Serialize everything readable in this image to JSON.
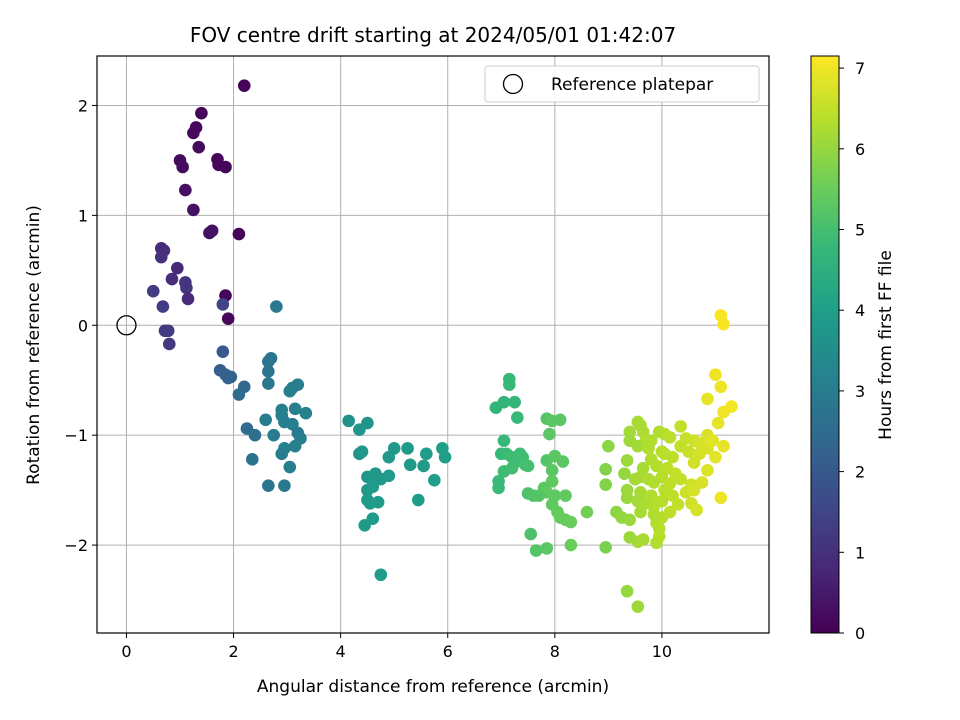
{
  "chart_data": {
    "type": "scatter",
    "title": "FOV centre drift starting at 2024/05/01 01:42:07",
    "xlabel": "Angular distance from reference (arcmin)",
    "ylabel": "Rotation from reference (arcmin)",
    "xlim": [
      -0.55,
      12.0
    ],
    "ylim": [
      -2.8,
      2.45
    ],
    "xticks": [
      0,
      2,
      4,
      6,
      8,
      10
    ],
    "yticks": [
      -2,
      -1,
      0,
      1,
      2
    ],
    "grid": true,
    "legend": {
      "position": "top-right",
      "entries": [
        "Reference platepar"
      ]
    },
    "reference_point": {
      "x": 0,
      "y": 0,
      "label": "Reference platepar",
      "marker": "hollow-circle"
    },
    "colorbar": {
      "label": "Hours from first FF file",
      "range": [
        0,
        7.15
      ],
      "ticks": [
        0,
        1,
        2,
        3,
        4,
        5,
        6,
        7
      ],
      "colormap": "viridis"
    },
    "colormap_stops": [
      "#440154",
      "#482878",
      "#3e4989",
      "#31688e",
      "#26828e",
      "#1f9e89",
      "#35b779",
      "#6ece58",
      "#b5de2b",
      "#fde725"
    ],
    "points": [
      {
        "x": 2.2,
        "y": 2.18,
        "c": 0.05
      },
      {
        "x": 1.4,
        "y": 1.93,
        "c": 0.1
      },
      {
        "x": 1.3,
        "y": 1.8,
        "c": 0.15
      },
      {
        "x": 1.25,
        "y": 1.75,
        "c": 0.15
      },
      {
        "x": 1.35,
        "y": 1.62,
        "c": 0.2
      },
      {
        "x": 1.0,
        "y": 1.5,
        "c": 0.2
      },
      {
        "x": 1.05,
        "y": 1.44,
        "c": 0.25
      },
      {
        "x": 1.7,
        "y": 1.51,
        "c": 0.1
      },
      {
        "x": 1.72,
        "y": 1.46,
        "c": 0.15
      },
      {
        "x": 1.85,
        "y": 1.44,
        "c": 0.1
      },
      {
        "x": 1.1,
        "y": 1.23,
        "c": 0.3
      },
      {
        "x": 1.25,
        "y": 1.05,
        "c": 0.35
      },
      {
        "x": 1.55,
        "y": 0.84,
        "c": 0.3
      },
      {
        "x": 1.6,
        "y": 0.86,
        "c": 0.35
      },
      {
        "x": 2.1,
        "y": 0.83,
        "c": 0.1
      },
      {
        "x": 0.65,
        "y": 0.7,
        "c": 0.9
      },
      {
        "x": 0.7,
        "y": 0.68,
        "c": 0.95
      },
      {
        "x": 0.65,
        "y": 0.62,
        "c": 1.0
      },
      {
        "x": 0.95,
        "y": 0.52,
        "c": 0.8
      },
      {
        "x": 0.85,
        "y": 0.42,
        "c": 0.9
      },
      {
        "x": 1.1,
        "y": 0.39,
        "c": 1.05
      },
      {
        "x": 1.12,
        "y": 0.34,
        "c": 1.1
      },
      {
        "x": 0.5,
        "y": 0.31,
        "c": 1.3
      },
      {
        "x": 1.15,
        "y": 0.24,
        "c": 0.85
      },
      {
        "x": 1.85,
        "y": 0.27,
        "c": 0.1
      },
      {
        "x": 1.8,
        "y": 0.19,
        "c": 1.5
      },
      {
        "x": 0.68,
        "y": 0.17,
        "c": 1.3
      },
      {
        "x": 1.9,
        "y": 0.06,
        "c": 0.15
      },
      {
        "x": 2.8,
        "y": 0.17,
        "c": 2.9
      },
      {
        "x": 0.72,
        "y": -0.05,
        "c": 1.2
      },
      {
        "x": 0.78,
        "y": -0.05,
        "c": 1.25
      },
      {
        "x": 0.8,
        "y": -0.17,
        "c": 1.2
      },
      {
        "x": 1.8,
        "y": -0.24,
        "c": 2.0
      },
      {
        "x": 2.65,
        "y": -0.33,
        "c": 2.7
      },
      {
        "x": 2.7,
        "y": -0.3,
        "c": 2.8
      },
      {
        "x": 1.75,
        "y": -0.41,
        "c": 2.1
      },
      {
        "x": 1.85,
        "y": -0.45,
        "c": 2.2
      },
      {
        "x": 1.9,
        "y": -0.48,
        "c": 2.2
      },
      {
        "x": 1.95,
        "y": -0.47,
        "c": 2.25
      },
      {
        "x": 2.65,
        "y": -0.42,
        "c": 2.8
      },
      {
        "x": 2.65,
        "y": -0.53,
        "c": 2.85
      },
      {
        "x": 2.2,
        "y": -0.56,
        "c": 2.4
      },
      {
        "x": 2.1,
        "y": -0.63,
        "c": 2.5
      },
      {
        "x": 3.1,
        "y": -0.57,
        "c": 3.0
      },
      {
        "x": 3.2,
        "y": -0.54,
        "c": 3.05
      },
      {
        "x": 3.05,
        "y": -0.6,
        "c": 3.1
      },
      {
        "x": 3.15,
        "y": -0.76,
        "c": 3.1
      },
      {
        "x": 2.9,
        "y": -0.77,
        "c": 3.1
      },
      {
        "x": 2.9,
        "y": -0.82,
        "c": 3.1
      },
      {
        "x": 3.35,
        "y": -0.8,
        "c": 3.2
      },
      {
        "x": 2.6,
        "y": -0.86,
        "c": 3.0
      },
      {
        "x": 2.95,
        "y": -0.88,
        "c": 3.05
      },
      {
        "x": 3.1,
        "y": -0.9,
        "c": 3.1
      },
      {
        "x": 2.25,
        "y": -0.94,
        "c": 2.5
      },
      {
        "x": 2.4,
        "y": -1.0,
        "c": 2.6
      },
      {
        "x": 2.75,
        "y": -1.0,
        "c": 3.0
      },
      {
        "x": 3.2,
        "y": -0.98,
        "c": 3.0
      },
      {
        "x": 3.25,
        "y": -1.03,
        "c": 3.1
      },
      {
        "x": 3.15,
        "y": -1.1,
        "c": 3.1
      },
      {
        "x": 2.95,
        "y": -1.12,
        "c": 3.15
      },
      {
        "x": 2.9,
        "y": -1.17,
        "c": 3.1
      },
      {
        "x": 2.35,
        "y": -1.22,
        "c": 2.7
      },
      {
        "x": 3.05,
        "y": -1.29,
        "c": 3.1
      },
      {
        "x": 2.65,
        "y": -1.46,
        "c": 2.8
      },
      {
        "x": 2.95,
        "y": -1.46,
        "c": 2.9
      },
      {
        "x": 4.15,
        "y": -0.87,
        "c": 3.6
      },
      {
        "x": 4.35,
        "y": -0.95,
        "c": 3.7
      },
      {
        "x": 4.5,
        "y": -0.89,
        "c": 3.7
      },
      {
        "x": 4.35,
        "y": -1.17,
        "c": 3.7
      },
      {
        "x": 4.4,
        "y": -1.15,
        "c": 3.75
      },
      {
        "x": 4.9,
        "y": -1.2,
        "c": 3.8
      },
      {
        "x": 5.0,
        "y": -1.12,
        "c": 3.8
      },
      {
        "x": 5.25,
        "y": -1.12,
        "c": 3.85
      },
      {
        "x": 5.3,
        "y": -1.27,
        "c": 3.9
      },
      {
        "x": 5.55,
        "y": -1.28,
        "c": 3.9
      },
      {
        "x": 5.6,
        "y": -1.17,
        "c": 3.95
      },
      {
        "x": 5.9,
        "y": -1.12,
        "c": 4.0
      },
      {
        "x": 5.95,
        "y": -1.2,
        "c": 4.0
      },
      {
        "x": 5.75,
        "y": -1.41,
        "c": 4.0
      },
      {
        "x": 4.5,
        "y": -1.38,
        "c": 3.75
      },
      {
        "x": 4.55,
        "y": -1.39,
        "c": 3.8
      },
      {
        "x": 4.65,
        "y": -1.35,
        "c": 3.8
      },
      {
        "x": 4.75,
        "y": -1.4,
        "c": 3.8
      },
      {
        "x": 4.9,
        "y": -1.37,
        "c": 3.85
      },
      {
        "x": 4.5,
        "y": -1.5,
        "c": 3.8
      },
      {
        "x": 4.6,
        "y": -1.47,
        "c": 3.85
      },
      {
        "x": 4.5,
        "y": -1.59,
        "c": 3.85
      },
      {
        "x": 4.55,
        "y": -1.62,
        "c": 3.9
      },
      {
        "x": 4.7,
        "y": -1.61,
        "c": 3.9
      },
      {
        "x": 5.45,
        "y": -1.59,
        "c": 3.95
      },
      {
        "x": 4.6,
        "y": -1.76,
        "c": 3.9
      },
      {
        "x": 4.45,
        "y": -1.82,
        "c": 3.9
      },
      {
        "x": 4.75,
        "y": -2.27,
        "c": 3.95
      },
      {
        "x": 7.15,
        "y": -0.49,
        "c": 4.8
      },
      {
        "x": 7.15,
        "y": -0.54,
        "c": 4.8
      },
      {
        "x": 6.9,
        "y": -0.75,
        "c": 4.7
      },
      {
        "x": 7.05,
        "y": -0.7,
        "c": 4.7
      },
      {
        "x": 7.25,
        "y": -0.7,
        "c": 4.75
      },
      {
        "x": 7.3,
        "y": -0.84,
        "c": 4.8
      },
      {
        "x": 7.85,
        "y": -0.85,
        "c": 5.2
      },
      {
        "x": 7.95,
        "y": -0.87,
        "c": 5.3
      },
      {
        "x": 8.1,
        "y": -0.86,
        "c": 5.3
      },
      {
        "x": 7.9,
        "y": -0.99,
        "c": 5.3
      },
      {
        "x": 7.05,
        "y": -1.05,
        "c": 4.8
      },
      {
        "x": 7.0,
        "y": -1.17,
        "c": 4.8
      },
      {
        "x": 7.1,
        "y": -1.17,
        "c": 4.85
      },
      {
        "x": 7.2,
        "y": -1.2,
        "c": 4.9
      },
      {
        "x": 7.35,
        "y": -1.17,
        "c": 4.9
      },
      {
        "x": 7.4,
        "y": -1.2,
        "c": 4.95
      },
      {
        "x": 7.25,
        "y": -1.25,
        "c": 4.9
      },
      {
        "x": 7.45,
        "y": -1.27,
        "c": 5.0
      },
      {
        "x": 7.5,
        "y": -1.28,
        "c": 5.0
      },
      {
        "x": 7.05,
        "y": -1.33,
        "c": 4.9
      },
      {
        "x": 7.2,
        "y": -1.3,
        "c": 4.95
      },
      {
        "x": 7.85,
        "y": -1.23,
        "c": 5.2
      },
      {
        "x": 8.0,
        "y": -1.19,
        "c": 5.3
      },
      {
        "x": 8.15,
        "y": -1.24,
        "c": 5.3
      },
      {
        "x": 7.95,
        "y": -1.32,
        "c": 5.3
      },
      {
        "x": 6.95,
        "y": -1.42,
        "c": 4.85
      },
      {
        "x": 6.95,
        "y": -1.48,
        "c": 4.85
      },
      {
        "x": 7.95,
        "y": -1.42,
        "c": 5.35
      },
      {
        "x": 7.8,
        "y": -1.48,
        "c": 5.3
      },
      {
        "x": 7.85,
        "y": -1.52,
        "c": 5.35
      },
      {
        "x": 7.5,
        "y": -1.53,
        "c": 5.1
      },
      {
        "x": 7.6,
        "y": -1.55,
        "c": 5.15
      },
      {
        "x": 7.7,
        "y": -1.55,
        "c": 5.2
      },
      {
        "x": 8.0,
        "y": -1.55,
        "c": 5.35
      },
      {
        "x": 8.2,
        "y": -1.55,
        "c": 5.4
      },
      {
        "x": 7.95,
        "y": -1.63,
        "c": 5.35
      },
      {
        "x": 8.05,
        "y": -1.7,
        "c": 5.4
      },
      {
        "x": 8.1,
        "y": -1.75,
        "c": 5.45
      },
      {
        "x": 8.2,
        "y": -1.77,
        "c": 5.45
      },
      {
        "x": 8.3,
        "y": -1.79,
        "c": 5.5
      },
      {
        "x": 8.6,
        "y": -1.7,
        "c": 5.6
      },
      {
        "x": 7.55,
        "y": -1.9,
        "c": 5.1
      },
      {
        "x": 8.3,
        "y": -2.0,
        "c": 5.5
      },
      {
        "x": 7.65,
        "y": -2.05,
        "c": 5.2
      },
      {
        "x": 7.85,
        "y": -2.03,
        "c": 5.3
      },
      {
        "x": 8.95,
        "y": -2.02,
        "c": 5.7
      },
      {
        "x": 9.55,
        "y": -0.88,
        "c": 6.2
      },
      {
        "x": 9.6,
        "y": -0.91,
        "c": 6.2
      },
      {
        "x": 9.4,
        "y": -0.97,
        "c": 6.15
      },
      {
        "x": 9.65,
        "y": -0.97,
        "c": 6.25
      },
      {
        "x": 9.8,
        "y": -1.05,
        "c": 6.3
      },
      {
        "x": 9.7,
        "y": -1.05,
        "c": 6.3
      },
      {
        "x": 9.95,
        "y": -0.97,
        "c": 6.3
      },
      {
        "x": 10.05,
        "y": -0.99,
        "c": 6.35
      },
      {
        "x": 10.15,
        "y": -1.02,
        "c": 6.4
      },
      {
        "x": 10.35,
        "y": -0.92,
        "c": 6.5
      },
      {
        "x": 10.45,
        "y": -1.03,
        "c": 6.55
      },
      {
        "x": 10.6,
        "y": -1.05,
        "c": 6.6
      },
      {
        "x": 10.7,
        "y": -1.07,
        "c": 6.7
      },
      {
        "x": 10.85,
        "y": -1.0,
        "c": 6.75
      },
      {
        "x": 11.05,
        "y": -0.89,
        "c": 6.9
      },
      {
        "x": 11.15,
        "y": -0.79,
        "c": 7.0
      },
      {
        "x": 11.3,
        "y": -0.74,
        "c": 7.05
      },
      {
        "x": 10.85,
        "y": -0.67,
        "c": 6.9
      },
      {
        "x": 11.0,
        "y": -0.45,
        "c": 7.0
      },
      {
        "x": 11.1,
        "y": -0.56,
        "c": 7.0
      },
      {
        "x": 11.1,
        "y": 0.09,
        "c": 7.1
      },
      {
        "x": 11.15,
        "y": 0.01,
        "c": 7.1
      },
      {
        "x": 9.0,
        "y": -1.1,
        "c": 5.9
      },
      {
        "x": 9.4,
        "y": -1.05,
        "c": 6.1
      },
      {
        "x": 9.55,
        "y": -1.1,
        "c": 6.15
      },
      {
        "x": 9.75,
        "y": -1.12,
        "c": 6.3
      },
      {
        "x": 10.0,
        "y": -1.15,
        "c": 6.35
      },
      {
        "x": 10.2,
        "y": -1.2,
        "c": 6.45
      },
      {
        "x": 10.05,
        "y": -1.17,
        "c": 6.4
      },
      {
        "x": 10.35,
        "y": -1.1,
        "c": 6.5
      },
      {
        "x": 10.5,
        "y": -1.15,
        "c": 6.55
      },
      {
        "x": 10.7,
        "y": -1.17,
        "c": 6.7
      },
      {
        "x": 10.85,
        "y": -1.12,
        "c": 6.75
      },
      {
        "x": 11.0,
        "y": -1.2,
        "c": 6.85
      },
      {
        "x": 11.15,
        "y": -1.1,
        "c": 6.9
      },
      {
        "x": 10.95,
        "y": -1.05,
        "c": 6.85
      },
      {
        "x": 9.35,
        "y": -1.23,
        "c": 6.05
      },
      {
        "x": 9.65,
        "y": -1.3,
        "c": 6.2
      },
      {
        "x": 9.8,
        "y": -1.22,
        "c": 6.3
      },
      {
        "x": 9.9,
        "y": -1.28,
        "c": 6.35
      },
      {
        "x": 10.1,
        "y": -1.3,
        "c": 6.45
      },
      {
        "x": 10.25,
        "y": -1.35,
        "c": 6.5
      },
      {
        "x": 10.6,
        "y": -1.25,
        "c": 6.65
      },
      {
        "x": 10.85,
        "y": -1.32,
        "c": 6.8
      },
      {
        "x": 8.95,
        "y": -1.31,
        "c": 5.8
      },
      {
        "x": 9.3,
        "y": -1.35,
        "c": 6.0
      },
      {
        "x": 9.5,
        "y": -1.4,
        "c": 6.15
      },
      {
        "x": 9.6,
        "y": -1.38,
        "c": 6.2
      },
      {
        "x": 9.75,
        "y": -1.4,
        "c": 6.25
      },
      {
        "x": 9.85,
        "y": -1.43,
        "c": 6.3
      },
      {
        "x": 10.0,
        "y": -1.38,
        "c": 6.35
      },
      {
        "x": 10.15,
        "y": -1.44,
        "c": 6.45
      },
      {
        "x": 10.35,
        "y": -1.4,
        "c": 6.5
      },
      {
        "x": 10.55,
        "y": -1.45,
        "c": 6.65
      },
      {
        "x": 10.75,
        "y": -1.43,
        "c": 6.75
      },
      {
        "x": 8.95,
        "y": -1.45,
        "c": 5.8
      },
      {
        "x": 9.35,
        "y": -1.5,
        "c": 6.05
      },
      {
        "x": 9.6,
        "y": -1.52,
        "c": 6.2
      },
      {
        "x": 9.8,
        "y": -1.55,
        "c": 6.3
      },
      {
        "x": 10.05,
        "y": -1.5,
        "c": 6.4
      },
      {
        "x": 10.2,
        "y": -1.55,
        "c": 6.45
      },
      {
        "x": 10.45,
        "y": -1.52,
        "c": 6.6
      },
      {
        "x": 10.6,
        "y": -1.5,
        "c": 6.7
      },
      {
        "x": 11.1,
        "y": -1.57,
        "c": 6.95
      },
      {
        "x": 9.35,
        "y": -1.57,
        "c": 6.05
      },
      {
        "x": 9.55,
        "y": -1.6,
        "c": 6.15
      },
      {
        "x": 9.7,
        "y": -1.62,
        "c": 6.25
      },
      {
        "x": 9.85,
        "y": -1.65,
        "c": 6.3
      },
      {
        "x": 10.0,
        "y": -1.6,
        "c": 6.35
      },
      {
        "x": 10.3,
        "y": -1.63,
        "c": 6.5
      },
      {
        "x": 10.55,
        "y": -1.62,
        "c": 6.65
      },
      {
        "x": 10.65,
        "y": -1.68,
        "c": 6.7
      },
      {
        "x": 9.15,
        "y": -1.7,
        "c": 5.9
      },
      {
        "x": 9.25,
        "y": -1.75,
        "c": 5.95
      },
      {
        "x": 9.4,
        "y": -1.77,
        "c": 6.05
      },
      {
        "x": 9.6,
        "y": -1.7,
        "c": 6.2
      },
      {
        "x": 9.85,
        "y": -1.72,
        "c": 6.3
      },
      {
        "x": 10.0,
        "y": -1.75,
        "c": 6.35
      },
      {
        "x": 10.15,
        "y": -1.7,
        "c": 6.45
      },
      {
        "x": 9.9,
        "y": -1.8,
        "c": 6.3
      },
      {
        "x": 9.95,
        "y": -1.85,
        "c": 6.35
      },
      {
        "x": 9.4,
        "y": -1.93,
        "c": 6.05
      },
      {
        "x": 9.55,
        "y": -1.97,
        "c": 6.15
      },
      {
        "x": 9.65,
        "y": -1.95,
        "c": 6.2
      },
      {
        "x": 9.9,
        "y": -1.98,
        "c": 6.3
      },
      {
        "x": 9.95,
        "y": -1.92,
        "c": 6.35
      },
      {
        "x": 9.35,
        "y": -2.42,
        "c": 6.0
      },
      {
        "x": 9.55,
        "y": -2.56,
        "c": 6.1
      }
    ]
  }
}
